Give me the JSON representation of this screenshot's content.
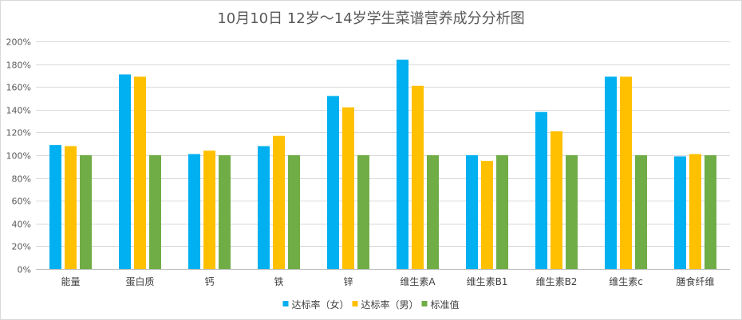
{
  "chart_data": {
    "type": "bar",
    "title": "10月10日 12岁～14岁学生菜谱营养成分分析图",
    "xlabel": "",
    "ylabel": "",
    "ylim": [
      0,
      200
    ],
    "ytick_step": 20,
    "ytick_suffix": "%",
    "grid": true,
    "legend_position": "bottom",
    "categories": [
      "能量",
      "蛋白质",
      "钙",
      "铁",
      "锌",
      "维生素A",
      "维生素B1",
      "维生素B2",
      "维生素c",
      "膳食纤维"
    ],
    "series": [
      {
        "name": "达标率（女）",
        "color": "#00b0f0",
        "values": [
          109,
          171,
          101,
          108,
          152,
          184,
          100,
          138,
          169,
          99
        ]
      },
      {
        "name": "达标率（男）",
        "color": "#ffc000",
        "values": [
          108,
          169,
          104,
          117,
          142,
          161,
          95,
          121,
          169,
          101
        ]
      },
      {
        "name": "标准值",
        "color": "#70ad47",
        "values": [
          100,
          100,
          100,
          100,
          100,
          100,
          100,
          100,
          100,
          100
        ]
      }
    ]
  }
}
